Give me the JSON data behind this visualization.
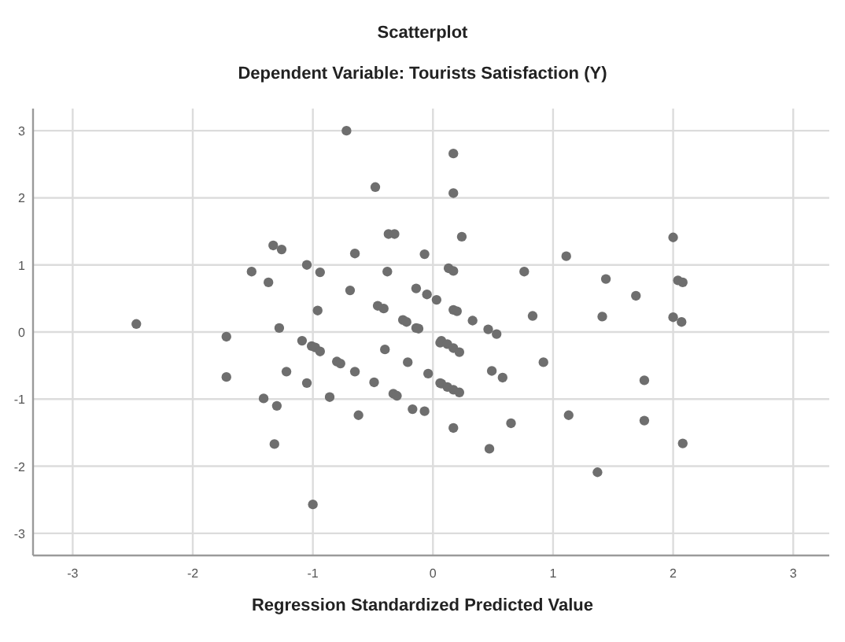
{
  "chart_data": {
    "type": "scatter",
    "title": "Scatterplot",
    "subtitle": "Dependent Variable: Tourists Satisfaction (Y)",
    "xlabel": "Regression Standardized Predicted Value",
    "xlim": [
      -3.33,
      3.3
    ],
    "ylim": [
      -3.33,
      3.33
    ],
    "xticks": [
      -3,
      -2,
      -1,
      0,
      1,
      2,
      3
    ],
    "yticks": [
      -3,
      -2,
      -1,
      0,
      1,
      2,
      3
    ],
    "grid": true,
    "marker": "circle",
    "series": [
      {
        "color": "#6e6e6e",
        "x": [
          -2.47,
          -0.72,
          -0.48,
          -0.37,
          -0.32,
          -1.33,
          -1.26,
          -1.51,
          -1.37,
          -1.05,
          -0.94,
          -0.65,
          -0.38,
          -0.07,
          -0.69,
          -0.46,
          -0.41,
          -0.96,
          -0.14,
          -0.05,
          0.03,
          -0.25,
          -0.22,
          -0.14,
          -0.12,
          -1.28,
          -1.72,
          -1.72,
          -1.09,
          -1.01,
          -0.98,
          -0.94,
          -1.22,
          -1.05,
          -1.41,
          -1.3,
          -1.32,
          -1.0,
          -0.86,
          -0.8,
          -0.77,
          -0.65,
          -0.62,
          -0.49,
          -0.4,
          -0.33,
          -0.3,
          -0.21,
          -0.17,
          -0.07,
          -0.04,
          0.06,
          0.06,
          0.17,
          0.17,
          0.24,
          0.13,
          0.17,
          0.17,
          0.2,
          0.33,
          0.46,
          0.53,
          0.76,
          0.83,
          1.11,
          1.44,
          1.41,
          1.69,
          2.0,
          2.04,
          2.08,
          2.0,
          2.07,
          0.07,
          0.12,
          0.17,
          0.22,
          0.07,
          0.12,
          0.17,
          0.22,
          0.17,
          0.49,
          0.58,
          0.47,
          0.65,
          0.92,
          1.13,
          1.37,
          1.76,
          1.76,
          2.08
        ],
        "values": [
          0.12,
          3.0,
          2.16,
          1.46,
          1.46,
          1.29,
          1.23,
          0.9,
          0.74,
          1.0,
          0.89,
          1.17,
          0.9,
          1.16,
          0.62,
          0.39,
          0.35,
          0.32,
          0.65,
          0.56,
          0.48,
          0.18,
          0.15,
          0.06,
          0.05,
          0.06,
          -0.07,
          -0.67,
          -0.13,
          -0.21,
          -0.23,
          -0.29,
          -0.59,
          -0.76,
          -0.99,
          -1.1,
          -1.67,
          -2.57,
          -0.97,
          -0.44,
          -0.47,
          -0.59,
          -1.24,
          -0.75,
          -0.26,
          -0.92,
          -0.95,
          -0.45,
          -1.15,
          -1.18,
          -0.62,
          -0.16,
          -0.76,
          2.66,
          2.07,
          1.42,
          0.95,
          0.91,
          0.33,
          0.31,
          0.17,
          0.04,
          -0.03,
          0.9,
          0.24,
          1.13,
          0.79,
          0.23,
          0.54,
          1.41,
          0.77,
          0.74,
          0.22,
          0.15,
          -0.13,
          -0.18,
          -0.24,
          -0.3,
          -0.77,
          -0.82,
          -0.86,
          -0.9,
          -1.43,
          -0.58,
          -0.68,
          -1.74,
          -1.36,
          -0.45,
          -1.24,
          -2.09,
          -0.72,
          -1.32,
          -1.66
        ]
      }
    ]
  }
}
